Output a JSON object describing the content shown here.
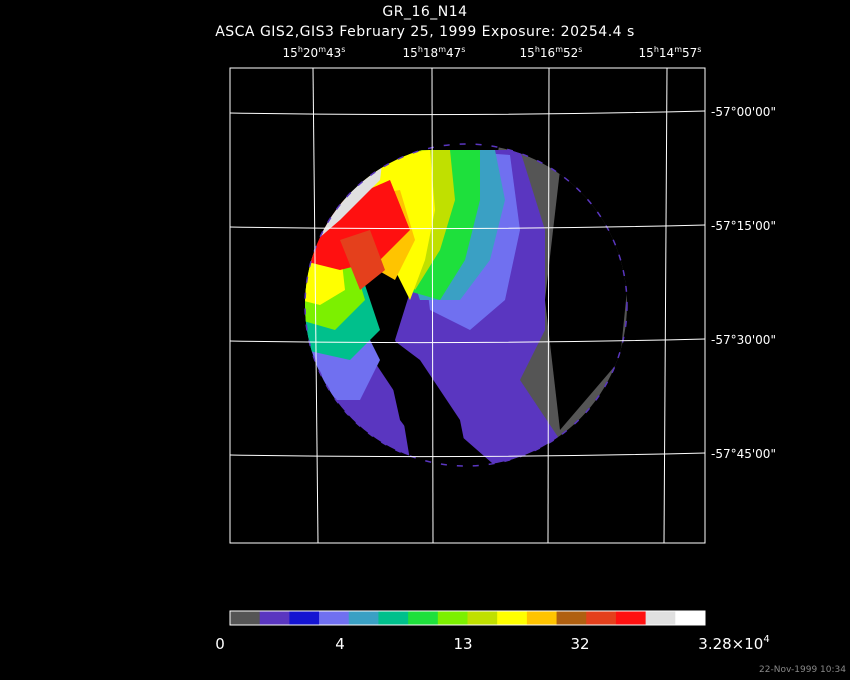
{
  "header": {
    "title": "GR_16_N14",
    "subtitle": "ASCA GIS2,GIS3 February 25, 1999 Exposure: 20254.4 s"
  },
  "ra_labels": [
    [
      "15",
      "h",
      "20",
      "m",
      "43",
      "s"
    ],
    [
      "15",
      "h",
      "18",
      "m",
      "47",
      "s"
    ],
    [
      "15",
      "h",
      "16",
      "m",
      "52",
      "s"
    ],
    [
      "15",
      "h",
      "14",
      "m",
      "57",
      "s"
    ]
  ],
  "dec_labels": [
    "-57°00'00\"",
    "-57°15'00\"",
    "-57°30'00\"",
    "-57°45'00\""
  ],
  "colorbar": {
    "colors": [
      "#555555",
      "#5a36c0",
      "#1414d2",
      "#7070f0",
      "#3aa0c4",
      "#00c08c",
      "#1ee03c",
      "#7cf000",
      "#c0e000",
      "#ffff00",
      "#ffc400",
      "#b06010",
      "#e4401c",
      "#ff1010",
      "#e0e0e0",
      "#ffffff"
    ],
    "labels": [
      [
        "0"
      ],
      [
        "4"
      ],
      [
        "13"
      ],
      [
        "32"
      ],
      [
        "3.28×10",
        "4"
      ]
    ]
  },
  "timestamp": "22-Nov-1999 10:34"
}
